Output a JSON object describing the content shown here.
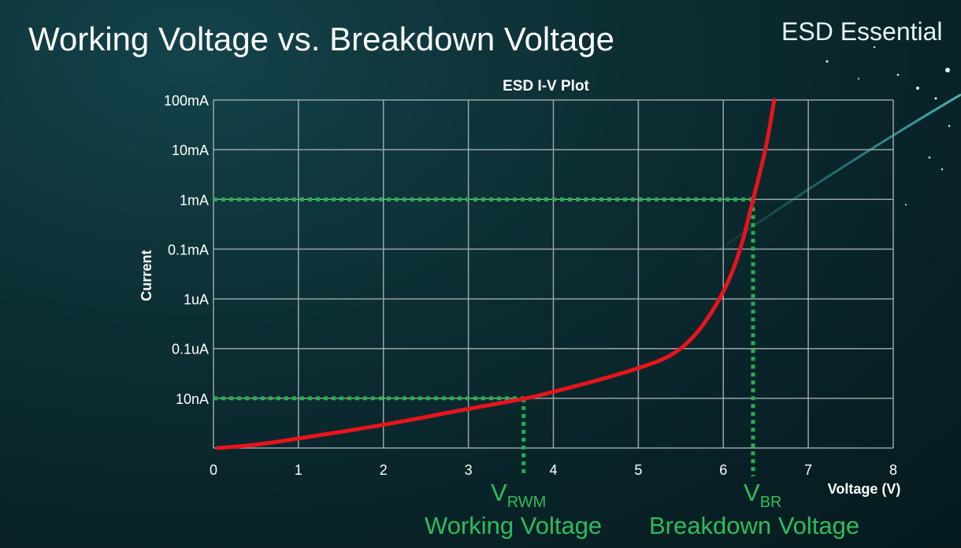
{
  "slide": {
    "title": "Working Voltage vs. Breakdown Voltage",
    "brand": "ESD Essential"
  },
  "annotations": {
    "vrwm_symbol": "V",
    "vrwm_sub": "RWM",
    "vrwm_caption": "Working Voltage",
    "vbr_symbol": "V",
    "vbr_sub": "BR",
    "vbr_caption": "Breakdown Voltage"
  },
  "colors": {
    "curve": "#e8141c",
    "guide": "#22b24c",
    "annotation_text": "#2dbd5c",
    "grid": "#9aa4a6"
  },
  "chart_data": {
    "type": "line",
    "title": "ESD I-V Plot",
    "xlabel": "Voltage (V)",
    "ylabel": "Current",
    "xlim": [
      0,
      8
    ],
    "x_ticks": [
      "0",
      "1",
      "2",
      "3",
      "4",
      "5",
      "6",
      "7",
      "8"
    ],
    "y_scale": "log",
    "y_ticks": [
      "",
      "10nA",
      "0.1uA",
      "1uA",
      "0.1mA",
      "1mA",
      "10mA",
      "100mA"
    ],
    "grid": true,
    "series": [
      {
        "points": [
          [
            0.05,
            0
          ],
          [
            0.5,
            0.06
          ],
          [
            1,
            0.19
          ],
          [
            2,
            0.46
          ],
          [
            3,
            0.79
          ],
          [
            3.7,
            1.0
          ],
          [
            4,
            1.13
          ],
          [
            4.5,
            1.35
          ],
          [
            5,
            1.6
          ],
          [
            5.4,
            1.85
          ],
          [
            5.7,
            2.3
          ],
          [
            6,
            3.1
          ],
          [
            6.2,
            3.95
          ],
          [
            6.35,
            5.0
          ],
          [
            6.5,
            6.0
          ],
          [
            6.6,
            7.0
          ]
        ]
      }
    ],
    "reference_lines": [
      {
        "voltage": 3.65,
        "current": "10nA"
      },
      {
        "voltage": 6.35,
        "current": "1mA"
      }
    ]
  }
}
